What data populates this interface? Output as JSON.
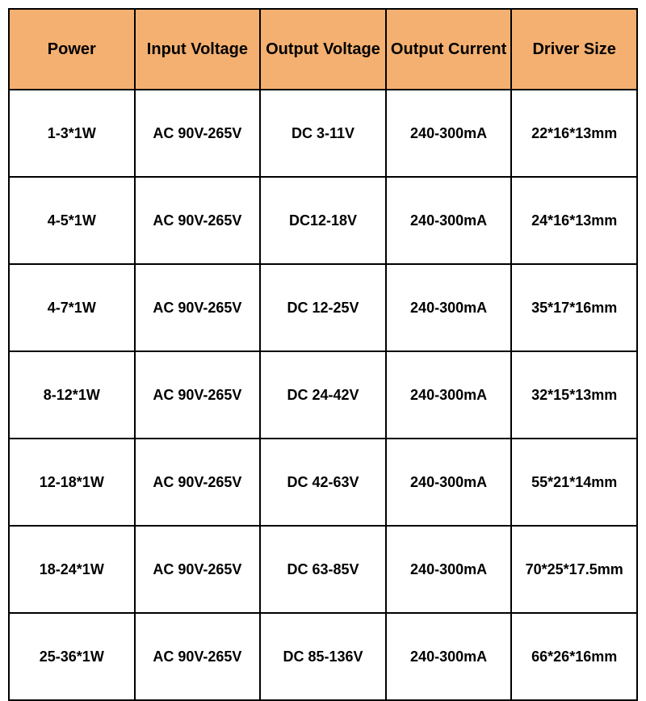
{
  "table": {
    "type": "table",
    "header_bg": "#f4b070",
    "row_bg": "#ffffff",
    "border_color": "#000000",
    "text_color": "#000000",
    "header_fontsize": 20,
    "cell_fontsize": 18,
    "font_weight": "bold",
    "columns": [
      {
        "label": "Power"
      },
      {
        "label": "Input Voltage"
      },
      {
        "label": "Output Voltage"
      },
      {
        "label": "Output Current"
      },
      {
        "label": "Driver Size"
      }
    ],
    "rows": [
      [
        "1-3*1W",
        "AC 90V-265V",
        "DC 3-11V",
        "240-300mA",
        "22*16*13mm"
      ],
      [
        "4-5*1W",
        "AC 90V-265V",
        "DC12-18V",
        "240-300mA",
        "24*16*13mm"
      ],
      [
        "4-7*1W",
        "AC 90V-265V",
        "DC 12-25V",
        "240-300mA",
        "35*17*16mm"
      ],
      [
        "8-12*1W",
        "AC 90V-265V",
        "DC 24-42V",
        "240-300mA",
        "32*15*13mm"
      ],
      [
        "12-18*1W",
        "AC 90V-265V",
        "DC 42-63V",
        "240-300mA",
        "55*21*14mm"
      ],
      [
        "18-24*1W",
        "AC 90V-265V",
        "DC 63-85V",
        "240-300mA",
        "70*25*17.5mm"
      ],
      [
        "25-36*1W",
        "AC 90V-265V",
        "DC 85-136V",
        "240-300mA",
        "66*26*16mm"
      ]
    ]
  }
}
